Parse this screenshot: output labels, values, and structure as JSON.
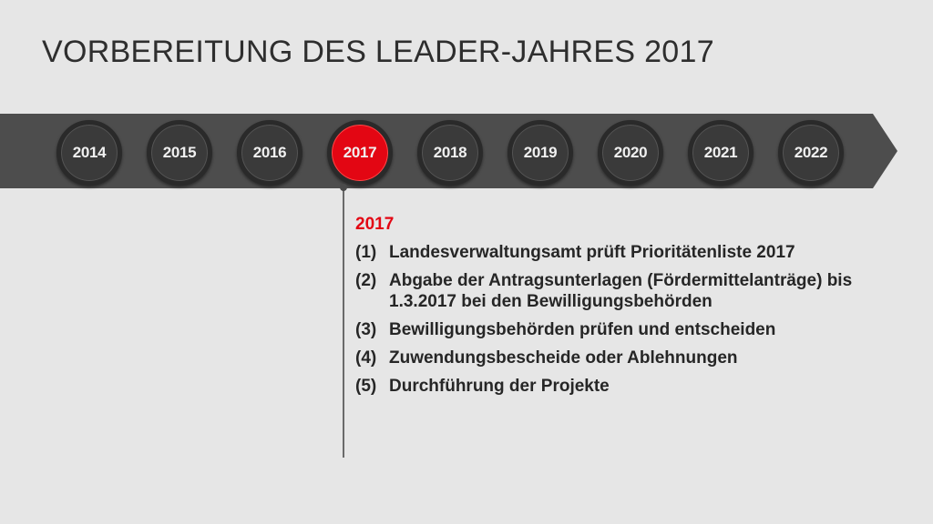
{
  "title": "VORBEREITUNG DES LEADER-JAHRES 2017",
  "timeline": {
    "years": [
      "2014",
      "2015",
      "2016",
      "2017",
      "2018",
      "2019",
      "2020",
      "2021",
      "2022"
    ],
    "active_year": "2017"
  },
  "content": {
    "heading": "2017",
    "items": [
      {
        "num": "(1)",
        "text": "Landesverwaltungsamt prüft Prioritätenliste 2017"
      },
      {
        "num": "(2)",
        "text": "Abgabe der Antragsunterlagen (Fördermittelanträge) bis 1.3.2017 bei den Bewilligungsbehörden"
      },
      {
        "num": "(3)",
        "text": "Bewilligungsbehörden prüfen und entscheiden"
      },
      {
        "num": "(4)",
        "text": "Zuwendungsbescheide oder Ablehnungen"
      },
      {
        "num": "(5)",
        "text": "Durchführung der Projekte"
      }
    ]
  },
  "colors": {
    "background": "#e6e6e6",
    "band": "#4d4d4d",
    "circle": "#3a3a3a",
    "accent": "#e30613"
  }
}
